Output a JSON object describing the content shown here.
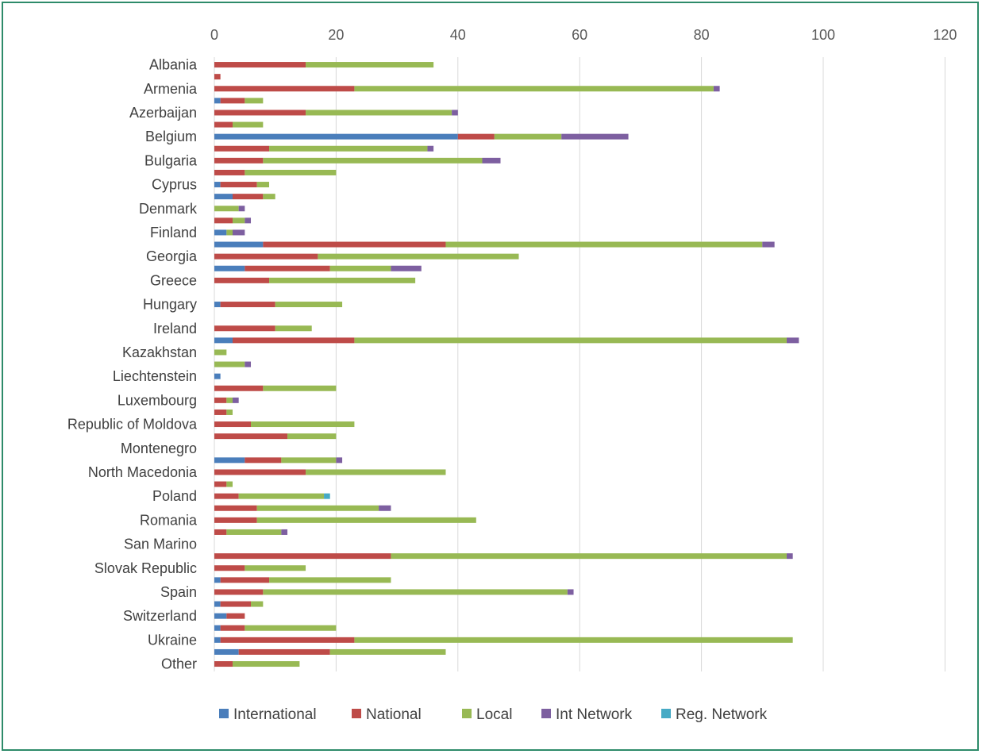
{
  "chart_data": {
    "type": "bar",
    "orientation": "horizontal",
    "stacked": true,
    "xlim": [
      0,
      120
    ],
    "xticks": [
      0,
      20,
      40,
      60,
      80,
      100,
      120
    ],
    "grid": true,
    "legend_position": "bottom",
    "category_labels_shown": [
      "Albania",
      "Armenia",
      "Azerbaijan",
      "Belgium",
      "Bulgaria",
      "Cyprus",
      "Denmark",
      "Finland",
      "Georgia",
      "Greece",
      "Hungary",
      "Ireland",
      "Kazakhstan",
      "Liechtenstein",
      "Luxembourg",
      "Republic of Moldova",
      "Montenegro",
      "North Macedonia",
      "Poland",
      "Romania",
      "San Marino",
      "Slovak Republic",
      "Spain",
      "Switzerland",
      "Ukraine",
      "Other"
    ],
    "bar_count": 52,
    "series": [
      {
        "name": "International",
        "color": "#4a7ebb",
        "values": [
          0,
          0,
          0,
          1,
          0,
          0,
          40,
          0,
          0,
          0,
          1,
          3,
          0,
          0,
          2,
          8,
          0,
          5,
          0,
          0,
          1,
          0,
          0,
          3,
          0,
          0,
          1,
          0,
          0,
          0,
          0,
          0,
          0,
          5,
          0,
          0,
          0,
          0,
          0,
          0,
          0,
          0,
          0,
          1,
          0,
          1,
          2,
          1,
          1,
          4,
          0,
          0
        ]
      },
      {
        "name": "National",
        "color": "#be4b48",
        "values": [
          15,
          1,
          23,
          4,
          15,
          3,
          6,
          9,
          8,
          5,
          6,
          5,
          0,
          3,
          0,
          30,
          17,
          14,
          9,
          0,
          9,
          0,
          10,
          20,
          0,
          0,
          0,
          8,
          2,
          2,
          6,
          12,
          0,
          6,
          15,
          2,
          4,
          7,
          7,
          2,
          0,
          29,
          5,
          8,
          8,
          5,
          3,
          4,
          22,
          15,
          3,
          0
        ]
      },
      {
        "name": "Local",
        "color": "#98b954",
        "values": [
          21,
          0,
          59,
          3,
          24,
          5,
          11,
          26,
          36,
          15,
          2,
          2,
          4,
          2,
          1,
          52,
          33,
          10,
          24,
          0,
          11,
          0,
          6,
          71,
          2,
          5,
          0,
          12,
          1,
          1,
          17,
          8,
          0,
          9,
          23,
          1,
          14,
          20,
          36,
          9,
          0,
          65,
          10,
          20,
          50,
          2,
          0,
          15,
          72,
          19,
          11,
          0
        ]
      },
      {
        "name": "Int Network",
        "color": "#7d5fa0",
        "values": [
          0,
          0,
          1,
          0,
          1,
          0,
          11,
          1,
          3,
          0,
          0,
          0,
          1,
          1,
          2,
          2,
          0,
          5,
          0,
          0,
          0,
          0,
          0,
          2,
          0,
          1,
          0,
          0,
          1,
          0,
          0,
          0,
          0,
          1,
          0,
          0,
          0,
          2,
          0,
          1,
          0,
          1,
          0,
          0,
          1,
          0,
          0,
          0,
          0,
          0,
          0,
          0
        ]
      },
      {
        "name": "Reg. Network",
        "color": "#46aac5",
        "values": [
          0,
          0,
          0,
          0,
          0,
          0,
          0,
          0,
          0,
          0,
          0,
          0,
          0,
          0,
          0,
          0,
          0,
          0,
          0,
          0,
          0,
          0,
          0,
          0,
          0,
          0,
          0,
          0,
          0,
          0,
          0,
          0,
          0,
          0,
          0,
          0,
          1,
          0,
          0,
          0,
          0,
          0,
          0,
          0,
          0,
          0,
          0,
          0,
          0,
          0,
          0,
          0
        ]
      }
    ]
  }
}
